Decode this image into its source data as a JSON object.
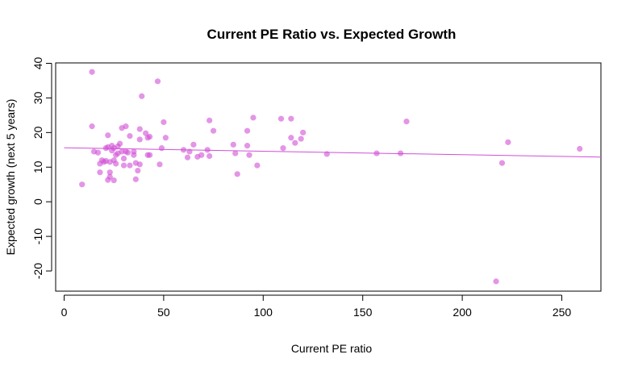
{
  "chart_data": {
    "type": "scatter",
    "title": "Current PE Ratio vs. Expected Growth",
    "xlabel": "Current PE ratio",
    "ylabel": "Expected growth (next 5 years)",
    "xlim": [
      0,
      270
    ],
    "ylim": [
      -25,
      40
    ],
    "x_ticks": [
      0,
      50,
      100,
      150,
      200,
      250
    ],
    "y_ticks": [
      -20,
      -10,
      0,
      10,
      20,
      30,
      40
    ],
    "grid": false,
    "point_color": "#d04fd6",
    "line_color": "#d04fd6",
    "trend_line": {
      "x": [
        0,
        270
      ],
      "y": [
        15.6,
        12.9
      ]
    },
    "points": [
      {
        "x": 9,
        "y": 5
      },
      {
        "x": 14,
        "y": 37.5
      },
      {
        "x": 14,
        "y": 21.8
      },
      {
        "x": 15,
        "y": 14.5
      },
      {
        "x": 17,
        "y": 14.2
      },
      {
        "x": 18,
        "y": 8.5
      },
      {
        "x": 18,
        "y": 11
      },
      {
        "x": 19,
        "y": 12
      },
      {
        "x": 20,
        "y": 11.5
      },
      {
        "x": 21,
        "y": 15.5
      },
      {
        "x": 21,
        "y": 11.8
      },
      {
        "x": 22,
        "y": 19.2
      },
      {
        "x": 22,
        "y": 15.8
      },
      {
        "x": 22,
        "y": 6.3
      },
      {
        "x": 23,
        "y": 8.5
      },
      {
        "x": 23,
        "y": 7.2
      },
      {
        "x": 23,
        "y": 11.5
      },
      {
        "x": 24,
        "y": 16.2
      },
      {
        "x": 24,
        "y": 14.8
      },
      {
        "x": 25,
        "y": 15.5
      },
      {
        "x": 25,
        "y": 12
      },
      {
        "x": 25,
        "y": 6.2
      },
      {
        "x": 26,
        "y": 13.5
      },
      {
        "x": 26,
        "y": 11
      },
      {
        "x": 27,
        "y": 16
      },
      {
        "x": 27,
        "y": 14
      },
      {
        "x": 28,
        "y": 16.8
      },
      {
        "x": 29,
        "y": 21.3
      },
      {
        "x": 29,
        "y": 14.5
      },
      {
        "x": 30,
        "y": 12.5
      },
      {
        "x": 30,
        "y": 10.5
      },
      {
        "x": 31,
        "y": 21.8
      },
      {
        "x": 31,
        "y": 14.5
      },
      {
        "x": 32,
        "y": 14.2
      },
      {
        "x": 33,
        "y": 19
      },
      {
        "x": 33,
        "y": 10.5
      },
      {
        "x": 35,
        "y": 14.5
      },
      {
        "x": 35,
        "y": 13.5
      },
      {
        "x": 36,
        "y": 11.2
      },
      {
        "x": 36,
        "y": 6.5
      },
      {
        "x": 37,
        "y": 9
      },
      {
        "x": 38,
        "y": 18
      },
      {
        "x": 38,
        "y": 21
      },
      {
        "x": 38,
        "y": 10.8
      },
      {
        "x": 39,
        "y": 30.5
      },
      {
        "x": 41,
        "y": 19.8
      },
      {
        "x": 42,
        "y": 13.5
      },
      {
        "x": 42,
        "y": 18.5
      },
      {
        "x": 43,
        "y": 18.8
      },
      {
        "x": 43,
        "y": 13.5
      },
      {
        "x": 47,
        "y": 34.8
      },
      {
        "x": 48,
        "y": 10.8
      },
      {
        "x": 49,
        "y": 15.5
      },
      {
        "x": 50,
        "y": 23
      },
      {
        "x": 51,
        "y": 18.5
      },
      {
        "x": 60,
        "y": 15
      },
      {
        "x": 62,
        "y": 12.8
      },
      {
        "x": 63,
        "y": 14.5
      },
      {
        "x": 65,
        "y": 16.5
      },
      {
        "x": 67,
        "y": 13
      },
      {
        "x": 69,
        "y": 13.5
      },
      {
        "x": 72,
        "y": 15
      },
      {
        "x": 73,
        "y": 23.5
      },
      {
        "x": 73,
        "y": 13.2
      },
      {
        "x": 75,
        "y": 20.5
      },
      {
        "x": 85,
        "y": 16.5
      },
      {
        "x": 86,
        "y": 14
      },
      {
        "x": 87,
        "y": 8
      },
      {
        "x": 92,
        "y": 20.5
      },
      {
        "x": 92,
        "y": 16.2
      },
      {
        "x": 93,
        "y": 13.5
      },
      {
        "x": 95,
        "y": 24.3
      },
      {
        "x": 97,
        "y": 10.5
      },
      {
        "x": 109,
        "y": 24
      },
      {
        "x": 110,
        "y": 15.5
      },
      {
        "x": 114,
        "y": 24
      },
      {
        "x": 114,
        "y": 18.5
      },
      {
        "x": 116,
        "y": 17
      },
      {
        "x": 119,
        "y": 18.2
      },
      {
        "x": 120,
        "y": 20
      },
      {
        "x": 132,
        "y": 13.8
      },
      {
        "x": 157,
        "y": 14
      },
      {
        "x": 169,
        "y": 14
      },
      {
        "x": 172,
        "y": 23.2
      },
      {
        "x": 217,
        "y": -23
      },
      {
        "x": 220,
        "y": 11.2
      },
      {
        "x": 223,
        "y": 17.2
      },
      {
        "x": 259,
        "y": 15.3
      }
    ]
  }
}
